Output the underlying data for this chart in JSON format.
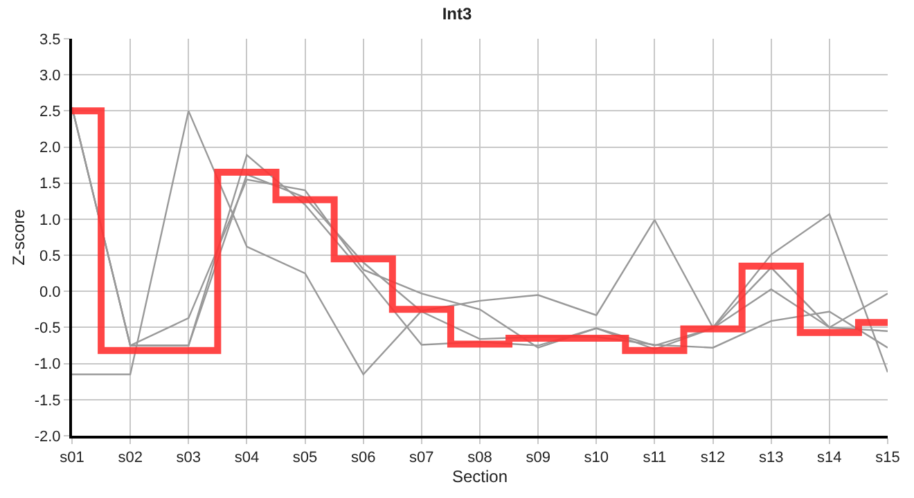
{
  "chart_data": {
    "type": "line",
    "title": "Int3",
    "xlabel": "Section",
    "ylabel": "Z-score",
    "categories": [
      "s01",
      "s02",
      "s03",
      "s04",
      "s05",
      "s06",
      "s07",
      "s08",
      "s09",
      "s10",
      "s11",
      "s12",
      "s13",
      "s14",
      "s15"
    ],
    "series": [
      {
        "color": "#999999",
        "values": [
          -1.15,
          -1.15,
          2.5,
          0.62,
          0.25,
          -1.15,
          -0.27,
          -0.13,
          -0.05,
          -0.33,
          0.99,
          -0.5,
          0.51,
          1.07,
          -1.12
        ]
      },
      {
        "color": "#999999",
        "values": [
          2.55,
          -0.75,
          -0.37,
          1.55,
          1.4,
          0.3,
          -0.03,
          -0.25,
          -0.78,
          -0.51,
          -0.75,
          -0.51,
          0.03,
          -0.5,
          -0.03
        ]
      },
      {
        "color": "#999999",
        "values": [
          2.55,
          -0.75,
          -0.75,
          1.62,
          1.3,
          0.4,
          -0.28,
          -0.66,
          -0.63,
          -0.63,
          -0.74,
          -0.78,
          -0.41,
          -0.28,
          -0.78
        ]
      },
      {
        "color": "#999999",
        "values": [
          2.55,
          -0.75,
          -0.75,
          1.89,
          1.2,
          0.25,
          -0.74,
          -0.7,
          -0.75,
          -0.51,
          -0.8,
          -0.51,
          0.33,
          -0.5,
          -0.55
        ]
      },
      {
        "type": "step",
        "color": "#ff3333",
        "values": [
          2.5,
          -0.82,
          -0.82,
          1.65,
          1.27,
          0.45,
          -0.25,
          -0.73,
          -0.65,
          -0.65,
          -0.82,
          -0.52,
          0.35,
          -0.57,
          -0.43
        ]
      }
    ],
    "ylim": [
      -2.0,
      3.5
    ],
    "yticks": [
      {
        "value": -2,
        "label": "-2.0"
      },
      -1.5,
      {
        "value": -1,
        "label": "-1.0"
      },
      -0.5,
      {
        "value": 0,
        "label": "0.0"
      },
      0.5,
      {
        "value": 1,
        "label": "1.0"
      },
      1.5,
      {
        "value": 2,
        "label": "2.0"
      },
      2.5,
      {
        "value": 3,
        "label": "3.0"
      },
      3.5
    ],
    "grid": true,
    "legend": false
  }
}
